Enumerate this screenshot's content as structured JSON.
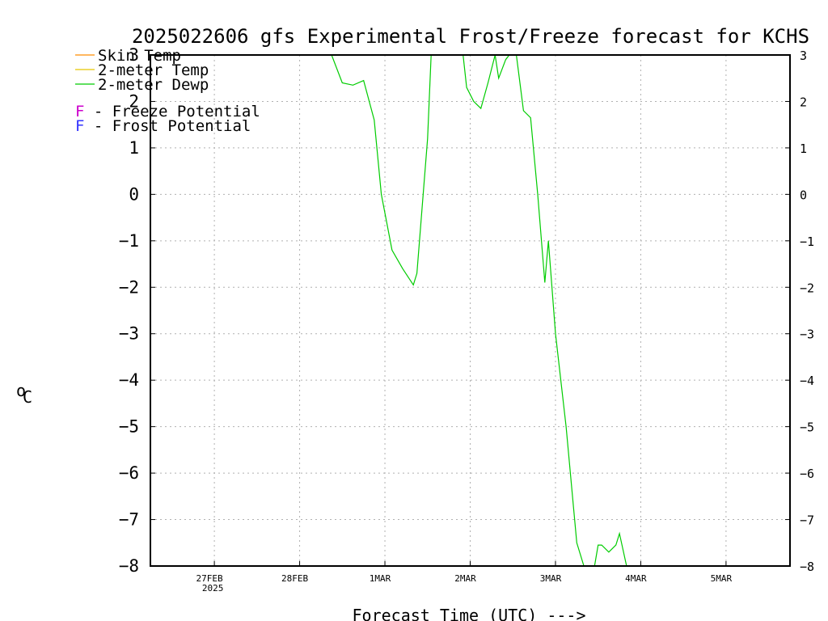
{
  "chart_data": {
    "type": "line",
    "title": "2025022606 gfs Experimental Frost/Freeze forecast for KCHS",
    "xlabel": "Forecast Time (UTC) --->",
    "ylabel_unit": "C",
    "ylabel_degree": "o",
    "ylim": [
      -8,
      3
    ],
    "yticks": [
      3,
      2,
      1,
      0,
      -1,
      -2,
      -3,
      -4,
      -5,
      -6,
      -7,
      -8
    ],
    "xlim": [
      "2025-02-26T06",
      "2025-03-05T18"
    ],
    "xticks": [
      {
        "label": "27FEB",
        "sub": "2025",
        "value": "2025-02-27T00"
      },
      {
        "label": "28FEB",
        "sub": "",
        "value": "2025-02-28T00"
      },
      {
        "label": "1MAR",
        "sub": "",
        "value": "2025-03-01T00"
      },
      {
        "label": "2MAR",
        "sub": "",
        "value": "2025-03-02T00"
      },
      {
        "label": "3MAR",
        "sub": "",
        "value": "2025-03-03T00"
      },
      {
        "label": "4MAR",
        "sub": "",
        "value": "2025-03-04T00"
      },
      {
        "label": "5MAR",
        "sub": "",
        "value": "2025-03-05T00"
      }
    ],
    "grid": true,
    "legend": {
      "position": "top-left",
      "series": [
        {
          "name": "Skin Temp",
          "color": "#ff8c00"
        },
        {
          "name": "2-meter Temp",
          "color": "#e6c800"
        },
        {
          "name": "2-meter Dewp",
          "color": "#00cc00"
        }
      ],
      "potentials": [
        {
          "symbol": "F",
          "text": " - Freeze Potential",
          "color": "#cc00cc"
        },
        {
          "symbol": "F",
          "text": " - Frost Potential",
          "color": "#3333ff"
        }
      ]
    },
    "series": [
      {
        "name": "2-meter Dewp",
        "color": "#00cc00",
        "points": [
          {
            "x": "2025-02-28T09",
            "y": 3.0
          },
          {
            "x": "2025-02-28T12",
            "y": 2.4
          },
          {
            "x": "2025-02-28T15",
            "y": 2.35
          },
          {
            "x": "2025-02-28T18",
            "y": 2.45
          },
          {
            "x": "2025-02-28T21",
            "y": 1.6
          },
          {
            "x": "2025-02-28T23",
            "y": 0.0
          },
          {
            "x": "2025-03-01T02",
            "y": -1.2
          },
          {
            "x": "2025-03-01T05",
            "y": -1.6
          },
          {
            "x": "2025-03-01T08",
            "y": -1.95
          },
          {
            "x": "2025-03-01T09",
            "y": -1.7
          },
          {
            "x": "2025-03-01T12",
            "y": 1.2
          },
          {
            "x": "2025-03-01T13",
            "y": 3.0
          },
          {
            "x": "2025-03-01T22",
            "y": 3.0
          },
          {
            "x": "2025-03-01T23",
            "y": 2.3
          },
          {
            "x": "2025-03-02T01",
            "y": 2.0
          },
          {
            "x": "2025-03-02T03",
            "y": 1.85
          },
          {
            "x": "2025-03-02T05",
            "y": 2.4
          },
          {
            "x": "2025-03-02T07",
            "y": 3.0
          },
          {
            "x": "2025-03-02T08",
            "y": 2.5
          },
          {
            "x": "2025-03-02T10",
            "y": 2.9
          },
          {
            "x": "2025-03-02T11",
            "y": 3.0
          },
          {
            "x": "2025-03-02T13",
            "y": 3.0
          },
          {
            "x": "2025-03-02T15",
            "y": 1.8
          },
          {
            "x": "2025-03-02T17",
            "y": 1.65
          },
          {
            "x": "2025-03-02T19",
            "y": 0.0
          },
          {
            "x": "2025-03-02T21",
            "y": -1.9
          },
          {
            "x": "2025-03-02T22",
            "y": -1.0
          },
          {
            "x": "2025-03-03T00",
            "y": -3.0
          },
          {
            "x": "2025-03-03T03",
            "y": -5.0
          },
          {
            "x": "2025-03-03T06",
            "y": -7.5
          },
          {
            "x": "2025-03-03T08",
            "y": -8.0
          },
          {
            "x": "2025-03-03T09",
            "y": -8.0
          },
          {
            "x": "2025-03-03T11",
            "y": -8.0
          },
          {
            "x": "2025-03-03T12",
            "y": -7.55
          },
          {
            "x": "2025-03-03T13",
            "y": -7.55
          },
          {
            "x": "2025-03-03T15",
            "y": -7.7
          },
          {
            "x": "2025-03-03T17",
            "y": -7.55
          },
          {
            "x": "2025-03-03T18",
            "y": -7.3
          },
          {
            "x": "2025-03-03T20",
            "y": -8.0
          }
        ]
      }
    ]
  }
}
